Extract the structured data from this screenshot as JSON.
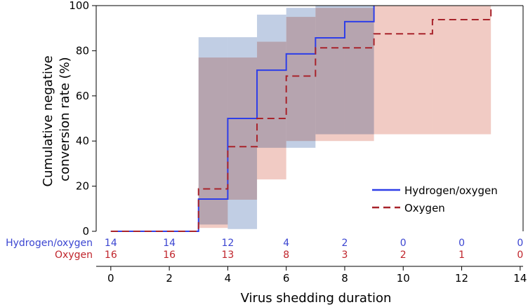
{
  "chart_data": {
    "type": "line",
    "subtype": "kaplan-meier-step",
    "xlabel": "Virus shedding duration",
    "ylabel": "Cumulative negative conversion rate (%)",
    "ylabel_lines": [
      "Cumulative negative",
      "conversion rate (%)"
    ],
    "xlim": [
      -0.5,
      14.1
    ],
    "ylim": [
      0,
      100
    ],
    "xticks": [
      0,
      2,
      4,
      6,
      8,
      10,
      12,
      14
    ],
    "yticks": [
      0,
      20,
      40,
      60,
      80,
      100
    ],
    "x_tick_labels": [
      "0",
      "2",
      "4",
      "6",
      "8",
      "10",
      "12",
      "14"
    ],
    "y_tick_labels": [
      "0",
      "20",
      "40",
      "60",
      "80",
      "100"
    ],
    "legend_position": "lower-right",
    "series": [
      {
        "name": "Hydrogen/oxygen",
        "color": "#2e3ee8",
        "band_color": "#9fb3d6",
        "line_style": "solid",
        "x": [
          0,
          3,
          4,
          5,
          6,
          7,
          8,
          9
        ],
        "y": [
          0,
          14.3,
          50.0,
          71.4,
          78.6,
          85.7,
          92.9,
          100
        ],
        "ci_lower": [
          0,
          3,
          1,
          37,
          37,
          43,
          43,
          41
        ],
        "ci_upper": [
          0,
          86,
          86,
          96,
          99,
          100,
          100,
          100
        ]
      },
      {
        "name": "Oxygen",
        "color": "#a8232b",
        "band_color": "#e6a193",
        "line_style": "dashed",
        "x": [
          0,
          3,
          4,
          5,
          6,
          7,
          9,
          11,
          13
        ],
        "y": [
          0,
          18.8,
          37.5,
          50.0,
          68.8,
          81.3,
          87.5,
          93.8,
          100
        ],
        "ci_lower": [
          0,
          1.5,
          14,
          23,
          40,
          40,
          43,
          43,
          43
        ],
        "ci_upper": [
          0,
          77,
          77,
          84,
          95,
          99,
          100,
          100,
          100
        ]
      }
    ],
    "risk_table": {
      "times": [
        0,
        2,
        4,
        6,
        8,
        10,
        12,
        14
      ],
      "rows": [
        {
          "label": "Hydrogen/oxygen",
          "color": "#3b45d1",
          "values": [
            "14",
            "14",
            "12",
            "4",
            "2",
            "0",
            "0",
            "0"
          ]
        },
        {
          "label": "Oxygen",
          "color": "#c0242b",
          "values": [
            "16",
            "16",
            "13",
            "8",
            "3",
            "2",
            "1",
            "0"
          ]
        }
      ]
    }
  }
}
